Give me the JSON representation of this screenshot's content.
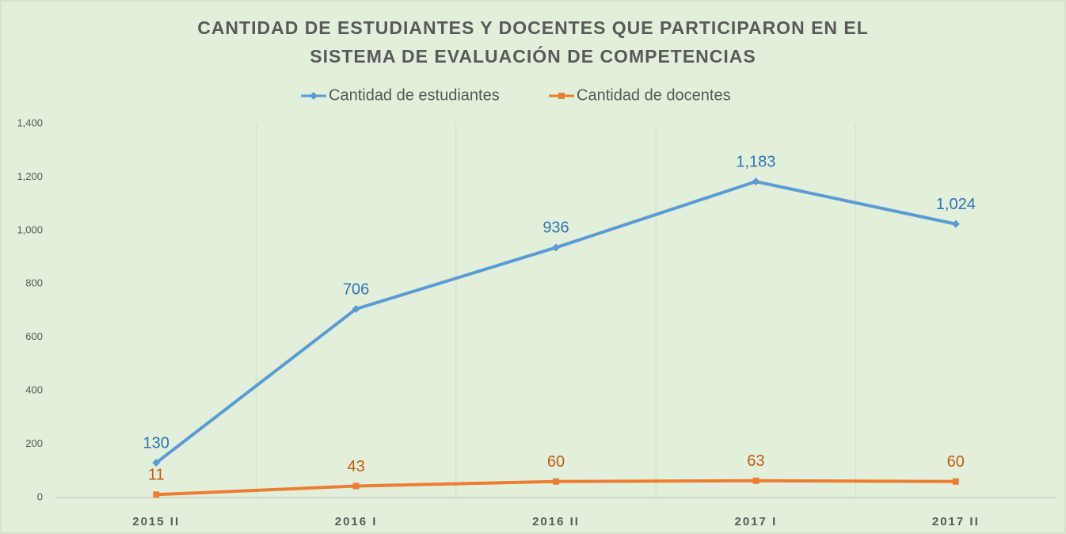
{
  "chart_data": {
    "type": "line",
    "title": [
      "CANTIDAD DE ESTUDIANTES Y DOCENTES QUE PARTICIPARON EN EL",
      "SISTEMA DE EVALUACIÓN DE COMPETENCIAS"
    ],
    "categories": [
      "2015 II",
      "2016 I",
      "2016 II",
      "2017 I",
      "2017 II"
    ],
    "series": [
      {
        "name": "Cantidad de estudiantes",
        "color": "#5b9bd5",
        "marker": "diamond",
        "label_color": "#2e75b6",
        "values": [
          130,
          706,
          936,
          1183,
          1024
        ],
        "value_labels": [
          "130",
          "706",
          "936",
          "1,183",
          "1,024"
        ]
      },
      {
        "name": "Cantidad de docentes",
        "color": "#ed7d31",
        "marker": "square",
        "label_color": "#c55a11",
        "values": [
          11,
          43,
          60,
          63,
          60
        ]
      }
    ],
    "ylim": [
      0,
      1400
    ],
    "yticks": [
      0,
      200,
      400,
      600,
      800,
      {
        "value": 1000,
        "label": "1,000"
      },
      {
        "value": 1200,
        "label": "1,200"
      },
      {
        "value": 1400,
        "label": "1,400"
      }
    ],
    "legend": "top"
  }
}
